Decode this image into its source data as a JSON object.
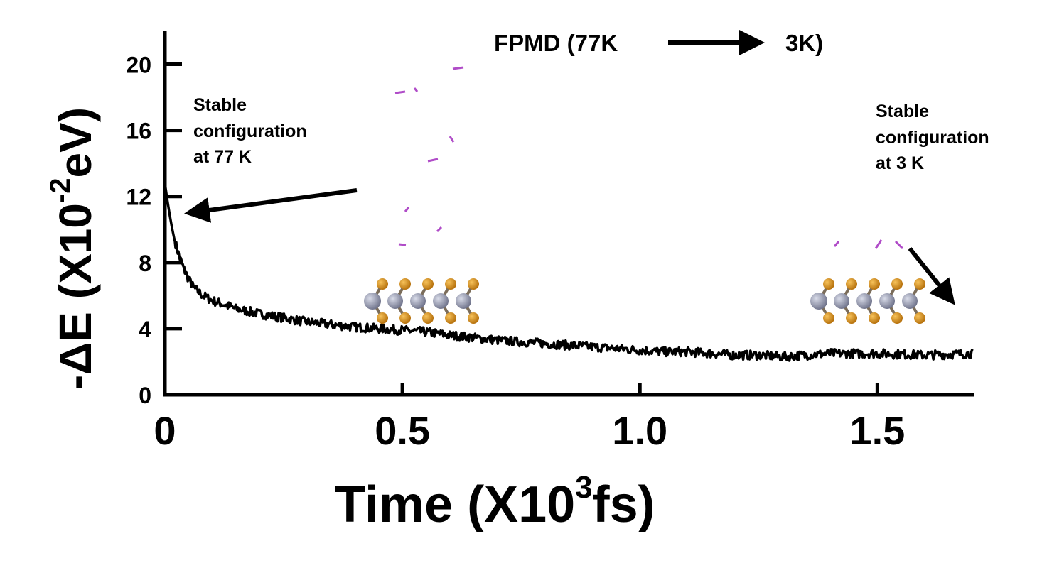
{
  "chart_data": {
    "type": "line",
    "title": "FPMD (77K",
    "title_end": "3K)",
    "xlabel_prefix": "Time (X10",
    "xlabel_exp": "3",
    "xlabel_suffix": "fs)",
    "ylabel_prefix": "-ΔE (X10",
    "ylabel_exp": "-2",
    "ylabel_suffix": "eV)",
    "xlim": [
      0,
      1.7
    ],
    "ylim": [
      0,
      22
    ],
    "x_ticks": [
      {
        "value": 0,
        "label": "0"
      },
      {
        "value": 0.5,
        "label": "0.5"
      },
      {
        "value": 1.0,
        "label": "1.0"
      },
      {
        "value": 1.5,
        "label": "1.5"
      }
    ],
    "y_ticks": [
      {
        "value": 0,
        "label": "0"
      },
      {
        "value": 4,
        "label": "4"
      },
      {
        "value": 8,
        "label": "8"
      },
      {
        "value": 12,
        "label": "12"
      },
      {
        "value": 16,
        "label": "16"
      },
      {
        "value": 20,
        "label": "20"
      }
    ],
    "grid": false,
    "series": [
      {
        "color": "#000000",
        "x": [
          0.0,
          0.005,
          0.01,
          0.015,
          0.02,
          0.03,
          0.04,
          0.05,
          0.06,
          0.08,
          0.1,
          0.15,
          0.2,
          0.3,
          0.4,
          0.5,
          0.55,
          0.6,
          0.7,
          0.8,
          0.9,
          1.0,
          1.05,
          1.1,
          1.15,
          1.2,
          1.25,
          1.3,
          1.35,
          1.4,
          1.5,
          1.6,
          1.7
        ],
        "y": [
          12.8,
          11.8,
          10.9,
          10.1,
          9.4,
          8.4,
          7.6,
          7.0,
          6.5,
          6.0,
          5.7,
          5.2,
          4.9,
          4.4,
          4.1,
          3.9,
          3.8,
          3.6,
          3.3,
          3.1,
          2.9,
          2.7,
          2.6,
          2.6,
          2.5,
          2.4,
          2.4,
          2.3,
          2.4,
          2.5,
          2.5,
          2.4,
          2.5
        ]
      }
    ],
    "annotations": [
      {
        "lines": [
          "Stable",
          "configuration",
          "at 77 K"
        ],
        "points_to_x": 0.02,
        "points_to_y": 11.5
      },
      {
        "lines": [
          "Stable",
          "configuration",
          "at 3 K"
        ],
        "points_to_x": 1.7,
        "points_to_y": 5.0
      }
    ],
    "colors": {
      "line": "#000000",
      "molecule": "#b04cc8",
      "metal_atom": "#8a8ea6",
      "chalcogen_atom": "#d9901a"
    }
  }
}
